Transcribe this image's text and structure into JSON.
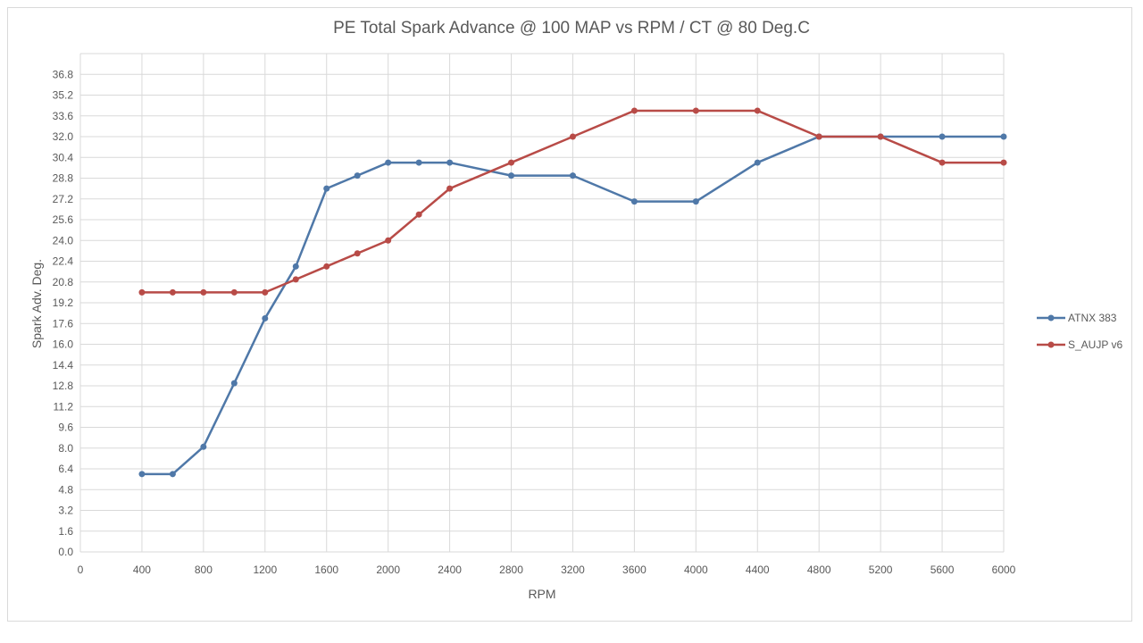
{
  "chart_data": {
    "type": "line",
    "title": "PE Total Spark Advance @ 100 MAP vs RPM / CT @ 80 Deg.C",
    "xlabel": "RPM",
    "ylabel": "Spark Adv. Deg.",
    "xlim": [
      0,
      6000
    ],
    "ylim": [
      0,
      38.4
    ],
    "x_ticks": [
      "0",
      "400",
      "800",
      "1200",
      "1600",
      "2000",
      "2400",
      "2800",
      "3200",
      "3600",
      "4000",
      "4400",
      "4800",
      "5200",
      "5600",
      "6000"
    ],
    "y_ticks": [
      "0.0",
      "1.6",
      "3.2",
      "4.8",
      "6.4",
      "8.0",
      "9.6",
      "11.2",
      "12.8",
      "14.4",
      "16.0",
      "17.6",
      "19.2",
      "20.8",
      "22.4",
      "24.0",
      "25.6",
      "27.2",
      "28.8",
      "30.4",
      "32.0",
      "33.6",
      "35.2",
      "36.8"
    ],
    "grid": true,
    "legend_position": "right",
    "x": [
      400,
      600,
      800,
      1000,
      1200,
      1400,
      1600,
      1800,
      2000,
      2200,
      2400,
      2800,
      3200,
      3600,
      4000,
      4400,
      4800,
      5200,
      5600,
      6000
    ],
    "series": [
      {
        "name": "ATNX 383",
        "color": "#4f78a8",
        "values": [
          6,
          6,
          8.1,
          13,
          18,
          22,
          28,
          29,
          30,
          30,
          30,
          29,
          29,
          27,
          27,
          30,
          32,
          32,
          32,
          32
        ]
      },
      {
        "name": "S_AUJP v6",
        "color": "#b84b47",
        "values": [
          20,
          20,
          20,
          20,
          20,
          21,
          22,
          23,
          24,
          26,
          28,
          30,
          32,
          34,
          34,
          34,
          32,
          32,
          30,
          30
        ]
      }
    ]
  }
}
